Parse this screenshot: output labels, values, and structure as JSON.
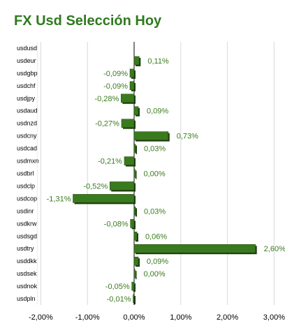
{
  "chart_data": {
    "type": "bar",
    "orientation": "horizontal",
    "title": "FX Usd Selección Hoy",
    "categories": [
      "usdusd",
      "usdeur",
      "usdgbp",
      "usdchf",
      "usdjpy",
      "usdaud",
      "usdnzd",
      "usdcny",
      "usdcad",
      "usdmxn",
      "usdbrl",
      "usdclp",
      "usdcop",
      "usdinr",
      "usdkrw",
      "usdsgd",
      "usdtry",
      "usddkk",
      "usdsek",
      "usdnok",
      "usdpln"
    ],
    "values": [
      null,
      0.11,
      -0.09,
      -0.09,
      -0.28,
      0.09,
      -0.27,
      0.73,
      0.03,
      -0.21,
      0.0,
      -0.52,
      -1.31,
      0.03,
      -0.08,
      0.06,
      2.6,
      0.09,
      0.0,
      -0.05,
      -0.01
    ],
    "data_labels": [
      "",
      "0,11%",
      "-0,09%",
      "-0,09%",
      "-0,28%",
      "0,09%",
      "-0,27%",
      "0,73%",
      "0,03%",
      "-0,21%",
      "0,00%",
      "-0,52%",
      "-1,31%",
      "0,03%",
      "-0,08%",
      "0,06%",
      "2,60%",
      "0,09%",
      "0,00%",
      "-0,05%",
      "-0,01%"
    ],
    "x_ticks": [
      -2,
      -1,
      0,
      1,
      2,
      3
    ],
    "x_tick_labels": [
      "-2,00%",
      "-1,00%",
      "0,00%",
      "1,00%",
      "2,00%",
      "3,00%"
    ],
    "xlim": [
      -2,
      3
    ],
    "unit": "%",
    "grid": "vertical",
    "legend": "none",
    "bar_color": "#3a7a1e",
    "bar_shadow_color": "#1d3f0f",
    "title_color": "#2f7a1f",
    "label_color": "#3a7a1e",
    "grid_color": "#d9d9d9"
  }
}
